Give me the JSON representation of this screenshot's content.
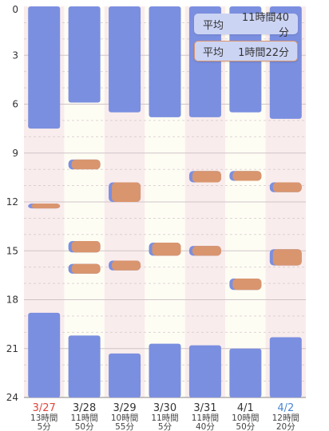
{
  "badges": {
    "average_sleep": {
      "label": "平均",
      "value": "11時間40分"
    },
    "average_nap": {
      "label": "平均",
      "value": "1時間22分"
    }
  },
  "colors": {
    "sleep": "#7b8fe0",
    "nap": "#d9956e",
    "nap_edge": "#7b8fe0",
    "sunday": "#e0453c",
    "today": "#4a85d4",
    "weekday": "#333333",
    "col_pink": "#f9ecec",
    "col_cream": "#fefdf4",
    "grid": "#cfc4c8"
  },
  "chart_data": {
    "type": "bar",
    "orientation": "vertical-time",
    "ylim": [
      0,
      24
    ],
    "y_inverted": true,
    "ytick_labels": [
      "0",
      "3",
      "6",
      "9",
      "12",
      "15",
      "18",
      "21",
      "24"
    ],
    "grid": true,
    "categories": [
      "3/27",
      "3/28",
      "3/29",
      "3/30",
      "3/31",
      "4/1",
      "4/2"
    ],
    "category_styles": [
      "sunday",
      "weekday",
      "weekday",
      "weekday",
      "weekday",
      "weekday",
      "today"
    ],
    "durations": [
      [
        "13時間",
        "5分"
      ],
      [
        "11時間",
        "50分"
      ],
      [
        "10時間",
        "55分"
      ],
      [
        "11時間",
        "5分"
      ],
      [
        "11時間",
        "40分"
      ],
      [
        "10時間",
        "50分"
      ],
      [
        "12時間",
        "20分"
      ]
    ],
    "series": [
      {
        "segments": [
          [
            [
              0,
              7.5
            ],
            [
              18.8,
              24
            ]
          ],
          [
            [
              0,
              5.9
            ],
            [
              20.2,
              24
            ]
          ],
          [
            [
              0,
              6.5
            ],
            [
              21.3,
              24
            ]
          ],
          [
            [
              0,
              6.8
            ],
            [
              20.7,
              24
            ]
          ],
          [
            [
              0,
              6.8
            ],
            [
              20.8,
              24
            ]
          ],
          [
            [
              0,
              6.5
            ],
            [
              21.0,
              24
            ]
          ],
          [
            [
              0,
              6.9
            ],
            [
              20.3,
              24
            ]
          ]
        ]
      },
      {
        "segments": [
          [
            [
              12.1,
              12.4
            ]
          ],
          [
            [
              9.4,
              10.0
            ],
            [
              14.4,
              15.1
            ],
            [
              15.8,
              16.4
            ]
          ],
          [
            [
              10.8,
              12.0
            ],
            [
              15.6,
              16.2
            ]
          ],
          [
            [
              14.5,
              15.3
            ]
          ],
          [
            [
              10.1,
              10.8
            ],
            [
              14.7,
              15.3
            ]
          ],
          [
            [
              10.1,
              10.7
            ],
            [
              16.7,
              17.4
            ]
          ],
          [
            [
              10.8,
              11.4
            ],
            [
              14.9,
              15.9
            ]
          ]
        ]
      }
    ]
  }
}
